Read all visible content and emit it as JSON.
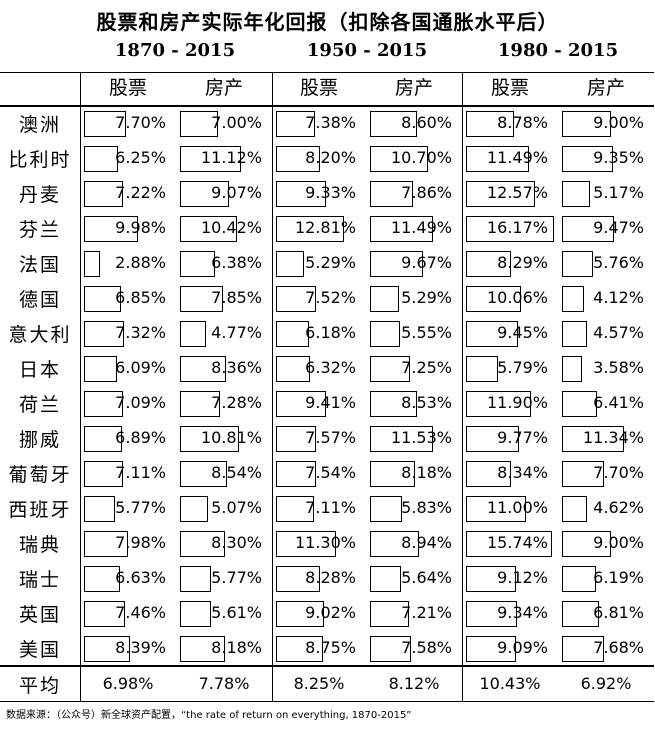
{
  "title": "股票和房产实际年化回报（扣除各国通胀水平后）",
  "periods": [
    "1870 - 2015",
    "1950 - 2015",
    "1980 - 2015"
  ],
  "sub_headers": [
    "股票",
    "房产"
  ],
  "avg_label": "平均",
  "source": "数据来源：（公众号）新全球资产配置，“the rate of return on everything, 1870-2015”",
  "chart_data": {
    "type": "table",
    "title": "股票和房产实际年化回报（扣除各国通胀水平后）",
    "unit": "%",
    "columns": [
      {
        "period": "1870 - 2015",
        "asset": "股票"
      },
      {
        "period": "1870 - 2015",
        "asset": "房产"
      },
      {
        "period": "1950 - 2015",
        "asset": "股票"
      },
      {
        "period": "1950 - 2015",
        "asset": "房产"
      },
      {
        "period": "1980 - 2015",
        "asset": "股票"
      },
      {
        "period": "1980 - 2015",
        "asset": "房产"
      }
    ],
    "rows": [
      {
        "country": "澳洲",
        "values": [
          "7.70%",
          "7.00%",
          "7.38%",
          "8.60%",
          "8.78%",
          "9.00%"
        ]
      },
      {
        "country": "比利时",
        "values": [
          "6.25%",
          "11.12%",
          "8.20%",
          "10.70%",
          "11.49%",
          "9.35%"
        ]
      },
      {
        "country": "丹麦",
        "values": [
          "7.22%",
          "9.07%",
          "9.33%",
          "7.86%",
          "12.57%",
          "5.17%"
        ]
      },
      {
        "country": "芬兰",
        "values": [
          "9.98%",
          "10.42%",
          "12.81%",
          "11.49%",
          "16.17%",
          "9.47%"
        ]
      },
      {
        "country": "法国",
        "values": [
          "2.88%",
          "6.38%",
          "5.29%",
          "9.67%",
          "8.29%",
          "5.76%"
        ]
      },
      {
        "country": "德国",
        "values": [
          "6.85%",
          "7.85%",
          "7.52%",
          "5.29%",
          "10.06%",
          "4.12%"
        ]
      },
      {
        "country": "意大利",
        "values": [
          "7.32%",
          "4.77%",
          "6.18%",
          "5.55%",
          "9.45%",
          "4.57%"
        ]
      },
      {
        "country": "日本",
        "values": [
          "6.09%",
          "8.36%",
          "6.32%",
          "7.25%",
          "5.79%",
          "3.58%"
        ]
      },
      {
        "country": "荷兰",
        "values": [
          "7.09%",
          "7.28%",
          "9.41%",
          "8.53%",
          "11.90%",
          "6.41%"
        ]
      },
      {
        "country": "挪威",
        "values": [
          "6.89%",
          "10.81%",
          "7.57%",
          "11.53%",
          "9.77%",
          "11.34%"
        ]
      },
      {
        "country": "葡萄牙",
        "values": [
          "7.11%",
          "8.54%",
          "7.54%",
          "8.18%",
          "8.34%",
          "7.70%"
        ]
      },
      {
        "country": "西班牙",
        "values": [
          "5.77%",
          "5.07%",
          "7.11%",
          "5.83%",
          "11.00%",
          "4.62%"
        ]
      },
      {
        "country": "瑞典",
        "values": [
          "7.98%",
          "8.30%",
          "11.30%",
          "8.94%",
          "15.74%",
          "9.00%"
        ]
      },
      {
        "country": "瑞士",
        "values": [
          "6.63%",
          "5.77%",
          "8.28%",
          "5.64%",
          "9.12%",
          "6.19%"
        ]
      },
      {
        "country": "英国",
        "values": [
          "7.46%",
          "5.61%",
          "9.02%",
          "7.21%",
          "9.34%",
          "6.81%"
        ]
      },
      {
        "country": "美国",
        "values": [
          "8.39%",
          "8.18%",
          "8.75%",
          "7.58%",
          "9.09%",
          "7.68%"
        ]
      }
    ],
    "average": [
      "6.98%",
      "7.78%",
      "8.25%",
      "8.12%",
      "10.43%",
      "6.92%"
    ]
  }
}
